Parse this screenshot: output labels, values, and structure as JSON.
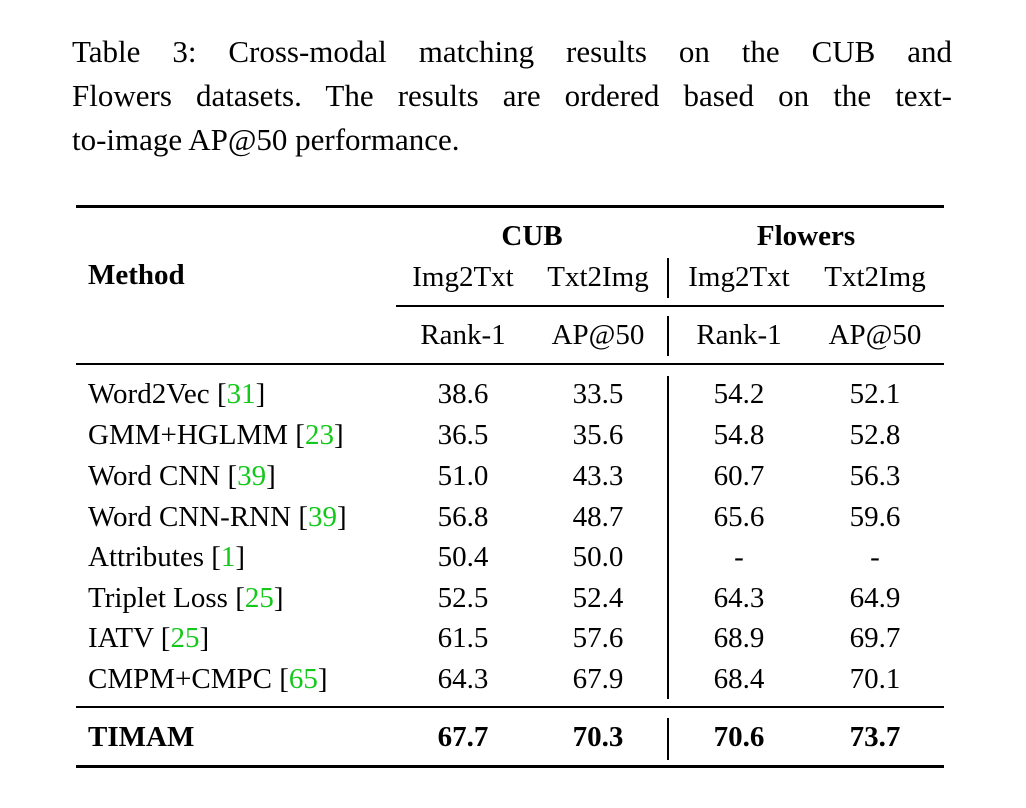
{
  "caption": {
    "lines": [
      "Table 3: Cross-modal matching results on the CUB and",
      "Flowers datasets. The results are ordered based on the text-",
      "to-image AP@50 performance."
    ]
  },
  "table": {
    "method_header": "Method",
    "groups": [
      "CUB",
      "Flowers"
    ],
    "subheaders": [
      "Img2Txt",
      "Txt2Img",
      "Img2Txt",
      "Txt2Img"
    ],
    "metrics": [
      "Rank-1",
      "AP@50",
      "Rank-1",
      "AP@50"
    ],
    "rows": [
      {
        "method": "Word2Vec",
        "cite": "31",
        "values": [
          "38.6",
          "33.5",
          "54.2",
          "52.1"
        ]
      },
      {
        "method": "GMM+HGLMM",
        "cite": "23",
        "values": [
          "36.5",
          "35.6",
          "54.8",
          "52.8"
        ]
      },
      {
        "method": "Word CNN",
        "cite": "39",
        "values": [
          "51.0",
          "43.3",
          "60.7",
          "56.3"
        ]
      },
      {
        "method": "Word CNN-RNN",
        "cite": "39",
        "values": [
          "56.8",
          "48.7",
          "65.6",
          "59.6"
        ]
      },
      {
        "method": "Attributes",
        "cite": "1",
        "values": [
          "50.4",
          "50.0",
          "-",
          "-"
        ]
      },
      {
        "method": "Triplet Loss",
        "cite": "25",
        "values": [
          "52.5",
          "52.4",
          "64.3",
          "64.9"
        ]
      },
      {
        "method": "IATV",
        "cite": "25",
        "values": [
          "61.5",
          "57.6",
          "68.9",
          "69.7"
        ]
      },
      {
        "method": "CMPM+CMPC",
        "cite": "65",
        "values": [
          "64.3",
          "67.9",
          "68.4",
          "70.1"
        ]
      }
    ],
    "final_row": {
      "method": "TIMAM",
      "values": [
        "67.7",
        "70.3",
        "70.6",
        "73.7"
      ]
    }
  }
}
